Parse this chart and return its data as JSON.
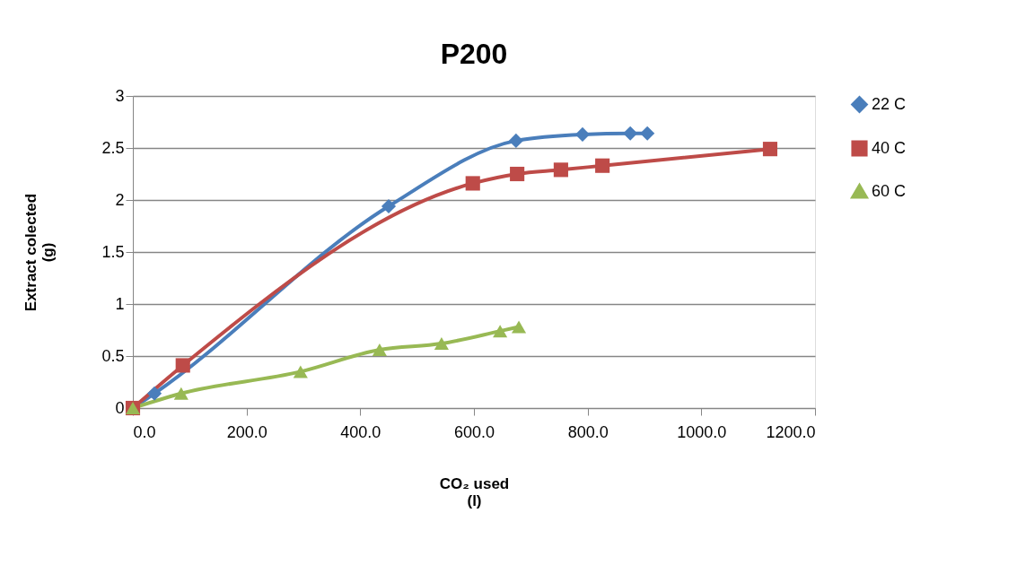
{
  "chart_data": {
    "type": "line",
    "title": "P200",
    "xlabel": "CO₂ used\n(l)",
    "ylabel": "Extract colected\n(g)",
    "xlim": [
      0,
      1200
    ],
    "xticks": [
      {
        "value": 0,
        "label": "0.0"
      },
      {
        "value": 200,
        "label": "200.0"
      },
      {
        "value": 400,
        "label": "400.0"
      },
      {
        "value": 600,
        "label": "600.0"
      },
      {
        "value": 800,
        "label": "800.0"
      },
      {
        "value": 1000,
        "label": "1000.0"
      },
      {
        "value": 1200,
        "label": "1200.0"
      }
    ],
    "ylim": [
      0,
      3
    ],
    "yticks": [
      0,
      0.5,
      1,
      1.5,
      2,
      2.5,
      3
    ],
    "grid": "y",
    "legend": "right",
    "line_style": "solid",
    "series": [
      {
        "name": "22 C",
        "color": "#4a7ebb",
        "marker": "diamond",
        "x": [
          0,
          38,
          450,
          674,
          791,
          875,
          905
        ],
        "values": [
          0,
          0.14,
          1.94,
          2.57,
          2.63,
          2.64,
          2.64
        ]
      },
      {
        "name": "40 C",
        "color": "#be4b48",
        "marker": "square",
        "x": [
          0,
          88,
          598,
          676,
          753,
          826,
          1121
        ],
        "values": [
          0,
          0.41,
          2.16,
          2.25,
          2.29,
          2.33,
          2.49
        ]
      },
      {
        "name": "60 C",
        "color": "#98b954",
        "marker": "triangle",
        "x": [
          0,
          85,
          295,
          434,
          543,
          646,
          679
        ],
        "values": [
          0,
          0.14,
          0.35,
          0.56,
          0.62,
          0.74,
          0.78
        ]
      }
    ]
  }
}
